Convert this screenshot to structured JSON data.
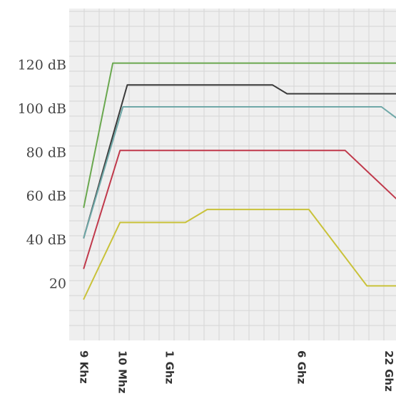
{
  "chart_data": {
    "type": "line",
    "title": "",
    "xlabel": "",
    "ylabel": "",
    "y_tick_labels": [
      "120 dB",
      "100 dB",
      "80 dB",
      "60 dB",
      "40 dB",
      "20"
    ],
    "y_tick_values": [
      120,
      100,
      80,
      60,
      40,
      20
    ],
    "ylim": [
      -6,
      146
    ],
    "x_ticks": [
      {
        "label": "9 Khz",
        "x": 0
      },
      {
        "label": "10 Mhz",
        "x": 2.65
      },
      {
        "label": "1 Ghz",
        "x": 5.9
      },
      {
        "label": "6 Ghz",
        "x": 15
      },
      {
        "label": "22 Ghz",
        "x": 21
      }
    ],
    "xlim": [
      -1,
      21.5
    ],
    "grid": true,
    "series": [
      {
        "color": "#6aa84f",
        "points": [
          [
            0,
            55
          ],
          [
            2,
            121
          ],
          [
            21.5,
            121
          ]
        ]
      },
      {
        "color": "#3a3a3a",
        "points": [
          [
            0,
            41
          ],
          [
            3,
            111
          ],
          [
            13,
            111
          ],
          [
            14,
            107
          ],
          [
            21.5,
            107
          ]
        ]
      },
      {
        "color": "#6fa8a8",
        "points": [
          [
            0,
            41
          ],
          [
            2.7,
            101
          ],
          [
            20.5,
            101
          ],
          [
            21.5,
            96
          ]
        ]
      },
      {
        "color": "#c0394b",
        "points": [
          [
            0,
            27
          ],
          [
            2.5,
            81
          ],
          [
            18,
            81
          ],
          [
            21.5,
            59
          ]
        ]
      },
      {
        "color": "#c9c23a",
        "points": [
          [
            0,
            13
          ],
          [
            2.5,
            48
          ],
          [
            7,
            48
          ],
          [
            8.5,
            54
          ],
          [
            15.5,
            54
          ],
          [
            19.5,
            19
          ],
          [
            21.5,
            19
          ]
        ]
      }
    ]
  }
}
